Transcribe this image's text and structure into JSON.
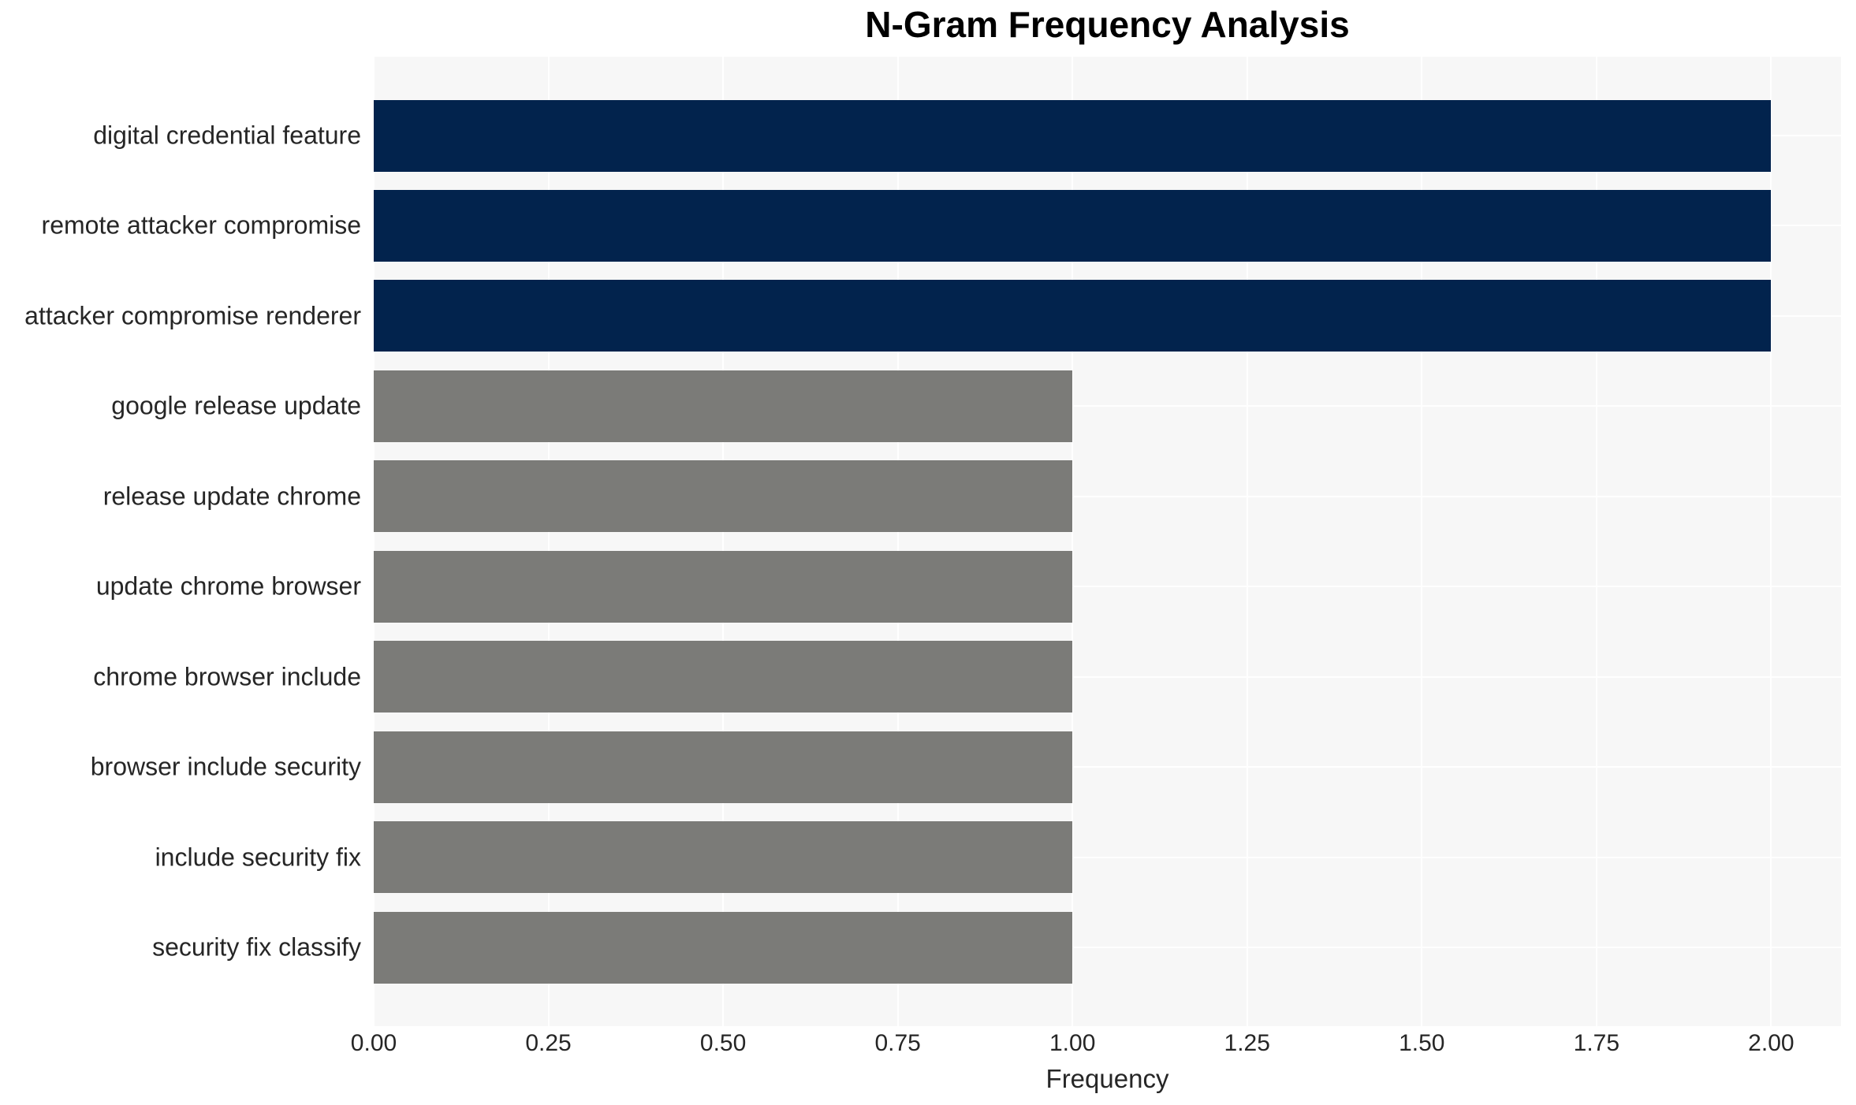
{
  "chart_data": {
    "type": "bar",
    "orientation": "horizontal",
    "title": "N-Gram Frequency Analysis",
    "xlabel": "Frequency",
    "ylabel": "",
    "categories": [
      "digital credential feature",
      "remote attacker compromise",
      "attacker compromise renderer",
      "google release update",
      "release update chrome",
      "update chrome browser",
      "chrome browser include",
      "browser include security",
      "include security fix",
      "security fix classify"
    ],
    "values": [
      2,
      2,
      2,
      1,
      1,
      1,
      1,
      1,
      1,
      1
    ],
    "bar_colors": [
      "#02234d",
      "#02234d",
      "#02234d",
      "#7b7b78",
      "#7b7b78",
      "#7b7b78",
      "#7b7b78",
      "#7b7b78",
      "#7b7b78",
      "#7b7b78"
    ],
    "xlim": [
      0,
      2.1
    ],
    "xticks": [
      0,
      0.25,
      0.5,
      0.75,
      1.0,
      1.25,
      1.5,
      1.75,
      2.0
    ],
    "xtick_labels": [
      "0.00",
      "0.25",
      "0.50",
      "0.75",
      "1.00",
      "1.25",
      "1.50",
      "1.75",
      "2.00"
    ],
    "grid": true,
    "legend": false,
    "colors": {
      "highlight_bar": "#02234d",
      "default_bar": "#7b7b78",
      "plot_background": "#f7f7f7",
      "grid_line": "#ffffff",
      "text": "#262626",
      "title_text": "#000000",
      "figure_background": "#ffffff"
    }
  }
}
